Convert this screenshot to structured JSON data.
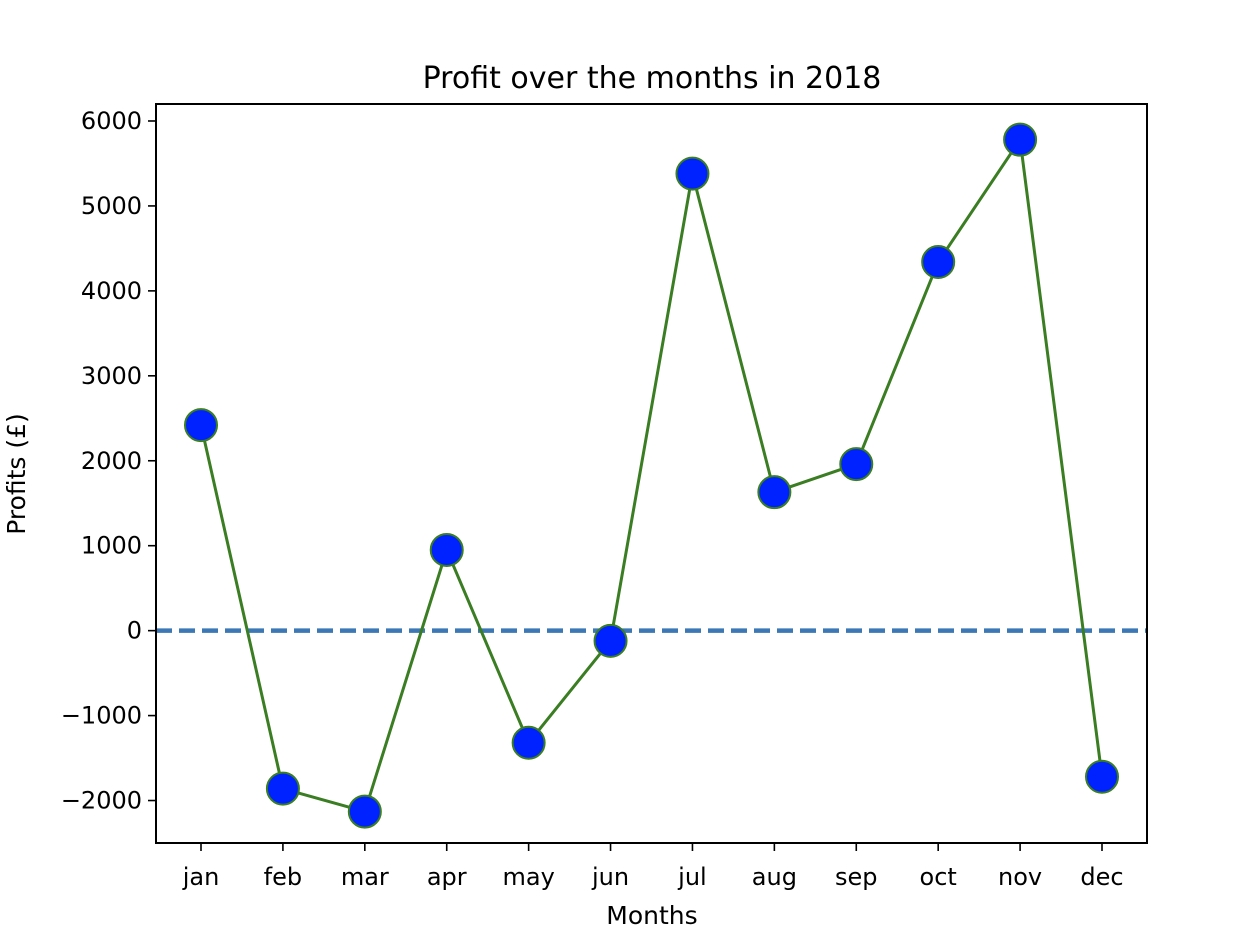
{
  "chart_data": {
    "type": "line",
    "title": "Profit over the months in 2018",
    "xlabel": "Months",
    "ylabel": "Profits (£)",
    "categories": [
      "jan",
      "feb",
      "mar",
      "apr",
      "may",
      "jun",
      "jul",
      "aug",
      "sep",
      "oct",
      "nov",
      "dec"
    ],
    "series": [
      {
        "values": [
          2420,
          -1860,
          -2130,
          950,
          -1320,
          -120,
          5380,
          1630,
          1960,
          4340,
          5780,
          -1720
        ],
        "line_color": "#3a7d22",
        "marker_color": "#0022ff",
        "marker_edge_color": "#3a7d22"
      }
    ],
    "ylim": [
      -2500,
      6200
    ],
    "yticks": [
      -2000,
      -1000,
      0,
      1000,
      2000,
      3000,
      4000,
      5000,
      6000
    ],
    "ytick_labels": [
      "−2000",
      "−1000",
      "0",
      "1000",
      "2000",
      "3000",
      "4000",
      "5000",
      "6000"
    ],
    "reference_line": {
      "y": 0,
      "style": "dashed",
      "color": "#3b78b5"
    },
    "grid": false,
    "legend": "none"
  }
}
